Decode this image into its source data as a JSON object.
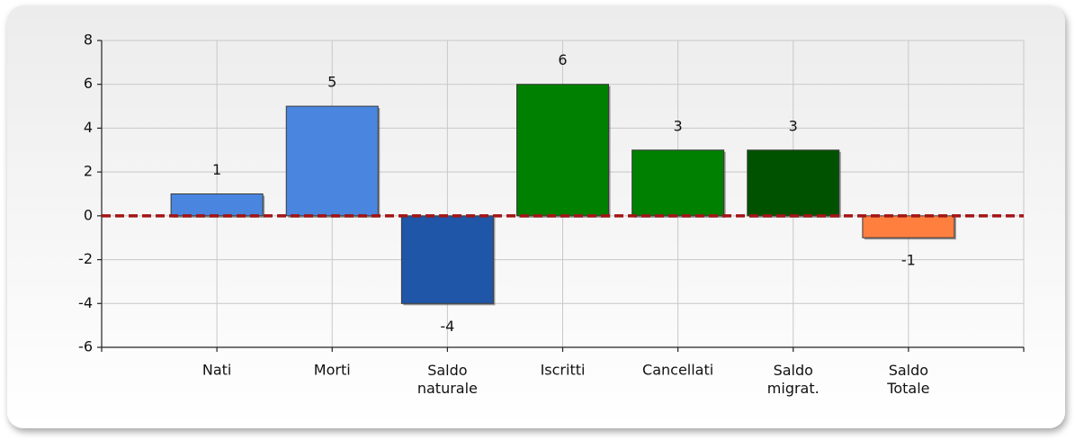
{
  "chart_data": {
    "type": "bar",
    "categories": [
      "Nati",
      "Morti",
      "Saldo naturale",
      "Iscritti",
      "Cancellati",
      "Saldo migrat.",
      "Saldo Totale"
    ],
    "values": [
      1,
      5,
      -4,
      6,
      3,
      3,
      -1
    ],
    "colors": [
      "#4a86df",
      "#4a86df",
      "#1f56a8",
      "#008000",
      "#008000",
      "#005200",
      "#ff7f3f"
    ],
    "ylim": [
      -6,
      8
    ],
    "yticks": [
      -6,
      -4,
      -2,
      0,
      2,
      4,
      6,
      8
    ],
    "grid": true,
    "reference_line": {
      "value": 0,
      "color": "#a31515"
    }
  }
}
